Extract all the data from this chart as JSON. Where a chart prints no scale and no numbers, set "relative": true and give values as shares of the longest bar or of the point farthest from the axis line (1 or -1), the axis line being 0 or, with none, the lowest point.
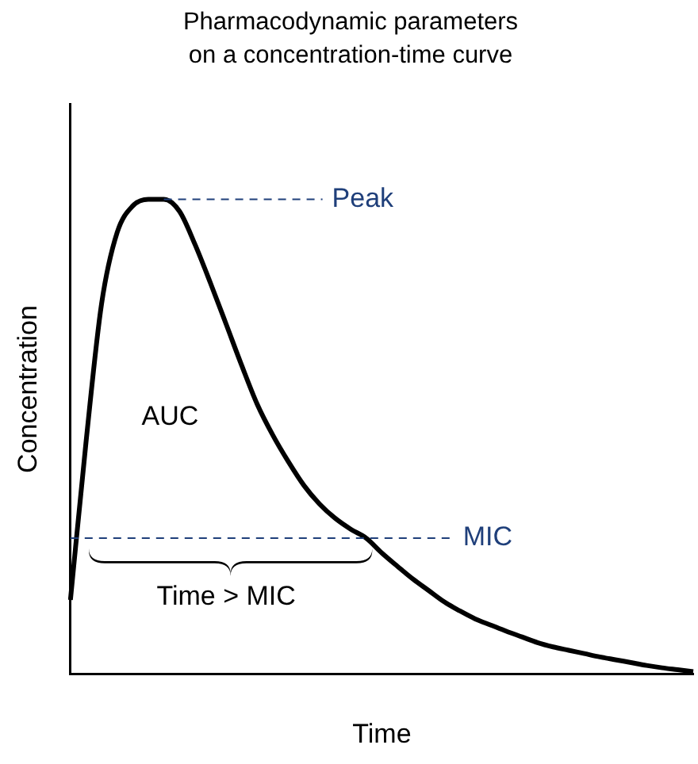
{
  "chart_data": {
    "type": "line",
    "title": "Pharmacodynamic parameters on a concentration-time curve",
    "xlabel": "Time",
    "ylabel": "Concentration",
    "relative": true,
    "legend": false,
    "grid": false,
    "marker": "none",
    "line_style": "solid",
    "categories": [
      null,
      null,
      null,
      null,
      null,
      null,
      null,
      null,
      null,
      null,
      null,
      null,
      null,
      null,
      null,
      null,
      null,
      null,
      null,
      null,
      null,
      null,
      null,
      null,
      null,
      null,
      null,
      null,
      null,
      null,
      null,
      null,
      null,
      null,
      null,
      null,
      null,
      null,
      null,
      null,
      null
    ],
    "series": [
      {
        "color": "#000000",
        "values": [
          0.156,
          0.488,
          0.78,
          0.93,
          0.986,
          1,
          1,
          0.975,
          0.905,
          0.823,
          0.737,
          0.65,
          0.568,
          0.503,
          0.447,
          0.397,
          0.358,
          0.328,
          0.305,
          0.286,
          0.255,
          0.227,
          0.2,
          0.176,
          0.152,
          0.133,
          0.116,
          0.103,
          0.09,
          0.078,
          0.066,
          0.057,
          0.05,
          0.043,
          0.036,
          0.03,
          0.024,
          0.018,
          0.013,
          0.009,
          0.005
        ]
      }
    ],
    "ref_lines": [
      {
        "axis": "y",
        "value": 1,
        "label": "Peak",
        "color": "#1f3f7a",
        "line_style": "dashed"
      },
      {
        "axis": "y",
        "value": 0.286,
        "label": "MIC",
        "color": "#1f3f7a",
        "line_style": "dashed"
      }
    ],
    "annotations": [
      "AUC",
      "Time > MIC"
    ]
  }
}
